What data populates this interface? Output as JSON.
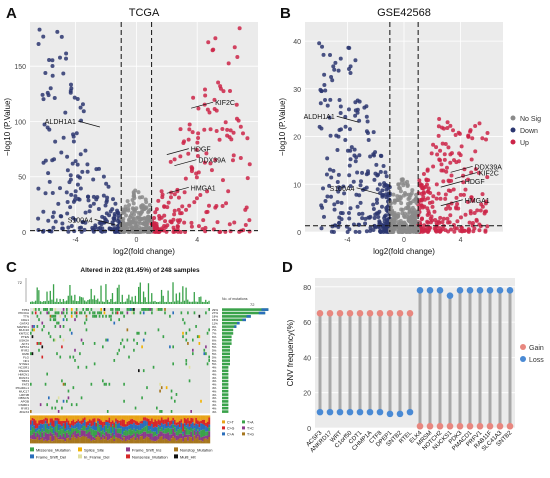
{
  "panel_letters": [
    "A",
    "B",
    "C",
    "D"
  ],
  "chart_data": [
    {
      "type": "scatter",
      "panel": "A",
      "title": "TCGA",
      "xlabel": "log2(fold change)",
      "ylabel": "−log10 (P.Value)",
      "x_ticks": [
        "-4",
        "0",
        "4"
      ],
      "y_ticks": [
        "0",
        "50",
        "100",
        "150"
      ],
      "xlim": [
        -7,
        8
      ],
      "ylim": [
        0,
        190
      ],
      "vlines": [
        -1,
        1
      ],
      "hline": 1.3,
      "groups": [
        {
          "name": "Down",
          "color": "#2b3670",
          "x_range": [
            -6.5,
            -1
          ],
          "y_max": 185
        },
        {
          "name": "Up",
          "color": "#cc2448",
          "x_range": [
            1,
            7.5
          ],
          "y_max": 185
        },
        {
          "name": "No Sig",
          "color": "#8a8a8a",
          "x_range": [
            -1,
            1
          ],
          "y_max": 40
        }
      ],
      "annotations": [
        {
          "label": "KIF2C",
          "x": 3.6,
          "y": 112
        },
        {
          "label": "ALDH1A1",
          "x": -2.4,
          "y": 95
        },
        {
          "label": "HDGF",
          "x": 2.0,
          "y": 70
        },
        {
          "label": "DDX39A",
          "x": 2.5,
          "y": 60
        },
        {
          "label": "HMGA1",
          "x": 2.0,
          "y": 35
        },
        {
          "label": "S100A4",
          "x": -1.3,
          "y": 6
        }
      ]
    },
    {
      "type": "scatter",
      "panel": "B",
      "title": "GSE42568",
      "xlabel": "log2(fold change)",
      "ylabel": "−log10 (P.Value)",
      "x_ticks": [
        "-4",
        "0",
        "4"
      ],
      "y_ticks": [
        "0",
        "10",
        "20",
        "30",
        "40"
      ],
      "xlim": [
        -7,
        7
      ],
      "ylim": [
        0,
        44
      ],
      "vlines": [
        -1,
        1
      ],
      "hline": 1.3,
      "groups": [
        {
          "name": "Down",
          "color": "#2b3670",
          "x_range": [
            -6,
            -1
          ],
          "y_max": 40
        },
        {
          "name": "Up",
          "color": "#cc2448",
          "x_range": [
            1,
            6
          ],
          "y_max": 24
        },
        {
          "name": "No Sig",
          "color": "#8a8a8a",
          "x_range": [
            -1,
            1
          ],
          "y_max": 12
        }
      ],
      "annotations": [
        {
          "label": "ALDH1A1",
          "x": -3.2,
          "y": 23
        },
        {
          "label": "DDX39A",
          "x": 3.3,
          "y": 12.5
        },
        {
          "label": "KIF2C",
          "x": 3.6,
          "y": 11.2
        },
        {
          "label": "HDGF",
          "x": 2.6,
          "y": 9.4
        },
        {
          "label": "S100A4",
          "x": -1.8,
          "y": 8
        },
        {
          "label": "HMGA1",
          "x": 2.6,
          "y": 5.5
        }
      ],
      "legend": {
        "position": "right",
        "entries": [
          {
            "name": "No Sig",
            "color": "#8a8a8a"
          },
          {
            "name": "Down",
            "color": "#2b3670"
          },
          {
            "name": "Up",
            "color": "#cc2448"
          }
        ]
      }
    },
    {
      "type": "heatmap",
      "panel": "C",
      "title": "Altered in 202 (81.45%) of 248 samples",
      "top_axis_label": "72",
      "right_axis_label": "No. of mutations",
      "right_axis_max": "72",
      "genes": [
        "TP53",
        "PIK3CA",
        "TTN",
        "CDH1",
        "GATA3",
        "MAP3K1",
        "MUC16",
        "KMT2C",
        "PTEN",
        "USH2A",
        "AKT1",
        "SPTA1",
        "RYR2",
        "DMD",
        "FLG",
        "NF1",
        "SYNE1",
        "NCOR1",
        "DNAH9",
        "HMCN1",
        "RUNX1",
        "TBX3",
        "FAT3",
        "PKHD1L1",
        "MUC17",
        "LRP1B",
        "OBSCN",
        "APOB",
        "CSMD1",
        "RYR3",
        "ZFHX4"
      ],
      "gene_percents": [
        "29%",
        "27%",
        "18%",
        "15%",
        "11%",
        "9%",
        "7%",
        "7%",
        "6%",
        "6%",
        "6%",
        "5%",
        "5%",
        "5%",
        "5%",
        "5%",
        "5%",
        "4%",
        "4%",
        "4%",
        "4%",
        "4%",
        "4%",
        "4%",
        "4%",
        "4%",
        "4%",
        "4%",
        "4%",
        "4%",
        "4%"
      ],
      "titv_legend": [
        "C>T",
        "C>G",
        "C>A",
        "T>A",
        "T>C",
        "T>G"
      ],
      "mutation_types": [
        {
          "name": "Missense_Mutation",
          "color": "#3aa24a"
        },
        {
          "name": "Splice_Site",
          "color": "#f2b200"
        },
        {
          "name": "Frame_Shift_Ins",
          "color": "#8b3a8b"
        },
        {
          "name": "Nonstop_Mutation",
          "color": "#a6761d"
        },
        {
          "name": "Frame_Shift_Del",
          "color": "#2a6ebb"
        },
        {
          "name": "In_Frame_Del",
          "color": "#e0e0a0"
        },
        {
          "name": "Nonsense_Mutation",
          "color": "#d62728"
        },
        {
          "name": "Multi_Hit",
          "color": "#111111"
        }
      ]
    },
    {
      "type": "lollipop",
      "panel": "D",
      "ylabel": "CNV frequency(%)",
      "y_ticks": [
        "0",
        "20",
        "40",
        "60",
        "80"
      ],
      "ylim": [
        0,
        85
      ],
      "categories": [
        "ACSF3",
        "ANKRD17",
        "WRT",
        "C1orf50",
        "CDT1",
        "CHMP1A",
        "CTF8",
        "DPEP1",
        "SNTB2",
        "RTEL",
        "ELK4",
        "MRSM",
        "NOTCH2",
        "NUCKS1",
        "PDK3",
        "PMACD1",
        "PRFV1",
        "RAB11F",
        "SLC41A3",
        "SNTB2"
      ],
      "series": [
        {
          "name": "Gain",
          "color": "#e8877f",
          "values": [
            65,
            65,
            65,
            65,
            65,
            65,
            65,
            65,
            65,
            65,
            1,
            1,
            1,
            1,
            1,
            1,
            1,
            1,
            1,
            1
          ]
        },
        {
          "name": "Loss",
          "color": "#4a8ad4",
          "values": [
            9,
            9,
            9,
            9,
            9,
            9,
            9,
            8,
            8,
            9,
            78,
            78,
            78,
            75,
            78,
            78,
            78,
            78,
            78,
            78
          ]
        }
      ],
      "legend": {
        "position": "right"
      }
    }
  ]
}
